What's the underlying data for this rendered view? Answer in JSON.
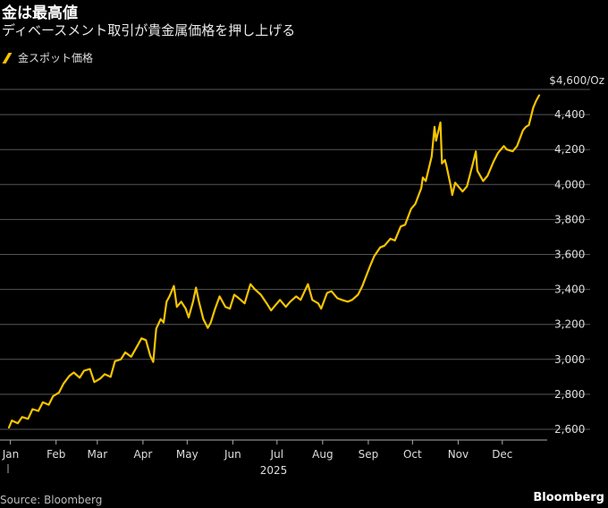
{
  "header": {
    "title": "金は最高値",
    "subtitle": "ディベースメント取引が貴金属価格を押し上げる"
  },
  "legend": {
    "label": "金スポット価格"
  },
  "footer": {
    "source": "Source: Bloomberg",
    "brand": "Bloomberg"
  },
  "colors": {
    "line": "#f5c400",
    "grid": "#555555",
    "background": "#000000"
  },
  "chart_data": {
    "type": "line",
    "title": "金は最高値",
    "subtitle": "ディベースメント取引が貴金属価格を押し上げる",
    "unit_label": "$4,600/Oz",
    "year_label": "2025",
    "ylim": [
      2500,
      4700
    ],
    "yticks": [
      {
        "value": 2600,
        "label": "2,600"
      },
      {
        "value": 2800,
        "label": "2,800"
      },
      {
        "value": 3000,
        "label": "3,000"
      },
      {
        "value": 3200,
        "label": "3,200"
      },
      {
        "value": 3400,
        "label": "3,400"
      },
      {
        "value": 3600,
        "label": "3,600"
      },
      {
        "value": 3800,
        "label": "3,800"
      },
      {
        "value": 4000,
        "label": "4,000"
      },
      {
        "value": 4200,
        "label": "4,200"
      },
      {
        "value": 4400,
        "label": "4,400"
      }
    ],
    "xticks": [
      {
        "date": "2025-01-01",
        "label": "Jan"
      },
      {
        "date": "2025-02-01",
        "label": "Feb"
      },
      {
        "date": "2025-03-01",
        "label": "Mar"
      },
      {
        "date": "2025-04-01",
        "label": "Apr"
      },
      {
        "date": "2025-05-01",
        "label": "May"
      },
      {
        "date": "2025-06-01",
        "label": "Jun"
      },
      {
        "date": "2025-07-01",
        "label": "Jul"
      },
      {
        "date": "2025-08-01",
        "label": "Aug"
      },
      {
        "date": "2025-09-01",
        "label": "Sep"
      },
      {
        "date": "2025-10-01",
        "label": "Oct"
      },
      {
        "date": "2025-11-01",
        "label": "Nov"
      },
      {
        "date": "2025-12-01",
        "label": "Dec"
      }
    ],
    "grid": "horizontal",
    "legend_position": "top-left",
    "series": [
      {
        "name": "金スポット価格",
        "points": [
          [
            "2024-12-31",
            2610
          ],
          [
            "2025-01-02",
            2650
          ],
          [
            "2025-01-06",
            2635
          ],
          [
            "2025-01-09",
            2670
          ],
          [
            "2025-01-13",
            2660
          ],
          [
            "2025-01-16",
            2715
          ],
          [
            "2025-01-20",
            2705
          ],
          [
            "2025-01-23",
            2755
          ],
          [
            "2025-01-27",
            2740
          ],
          [
            "2025-01-30",
            2790
          ],
          [
            "2025-02-03",
            2810
          ],
          [
            "2025-02-06",
            2860
          ],
          [
            "2025-02-10",
            2905
          ],
          [
            "2025-02-13",
            2925
          ],
          [
            "2025-02-17",
            2895
          ],
          [
            "2025-02-20",
            2935
          ],
          [
            "2025-02-24",
            2945
          ],
          [
            "2025-02-27",
            2870
          ],
          [
            "2025-03-03",
            2890
          ],
          [
            "2025-03-06",
            2915
          ],
          [
            "2025-03-10",
            2900
          ],
          [
            "2025-03-13",
            2990
          ],
          [
            "2025-03-17",
            3000
          ],
          [
            "2025-03-20",
            3040
          ],
          [
            "2025-03-24",
            3015
          ],
          [
            "2025-03-27",
            3060
          ],
          [
            "2025-03-31",
            3120
          ],
          [
            "2025-04-03",
            3110
          ],
          [
            "2025-04-06",
            3020
          ],
          [
            "2025-04-08",
            2985
          ],
          [
            "2025-04-10",
            3175
          ],
          [
            "2025-04-13",
            3230
          ],
          [
            "2025-04-15",
            3210
          ],
          [
            "2025-04-17",
            3330
          ],
          [
            "2025-04-19",
            3360
          ],
          [
            "2025-04-22",
            3420
          ],
          [
            "2025-04-24",
            3300
          ],
          [
            "2025-04-27",
            3330
          ],
          [
            "2025-04-30",
            3290
          ],
          [
            "2025-05-02",
            3240
          ],
          [
            "2025-05-05",
            3330
          ],
          [
            "2025-05-07",
            3410
          ],
          [
            "2025-05-09",
            3330
          ],
          [
            "2025-05-12",
            3230
          ],
          [
            "2025-05-15",
            3180
          ],
          [
            "2025-05-17",
            3210
          ],
          [
            "2025-05-20",
            3290
          ],
          [
            "2025-05-23",
            3360
          ],
          [
            "2025-05-27",
            3300
          ],
          [
            "2025-05-30",
            3290
          ],
          [
            "2025-06-02",
            3370
          ],
          [
            "2025-06-05",
            3350
          ],
          [
            "2025-06-09",
            3320
          ],
          [
            "2025-06-13",
            3430
          ],
          [
            "2025-06-16",
            3400
          ],
          [
            "2025-06-20",
            3370
          ],
          [
            "2025-06-24",
            3320
          ],
          [
            "2025-06-27",
            3280
          ],
          [
            "2025-06-30",
            3310
          ],
          [
            "2025-07-03",
            3340
          ],
          [
            "2025-07-07",
            3300
          ],
          [
            "2025-07-10",
            3330
          ],
          [
            "2025-07-14",
            3360
          ],
          [
            "2025-07-17",
            3340
          ],
          [
            "2025-07-22",
            3430
          ],
          [
            "2025-07-25",
            3340
          ],
          [
            "2025-07-29",
            3320
          ],
          [
            "2025-07-31",
            3290
          ],
          [
            "2025-08-04",
            3380
          ],
          [
            "2025-08-07",
            3390
          ],
          [
            "2025-08-11",
            3350
          ],
          [
            "2025-08-14",
            3340
          ],
          [
            "2025-08-18",
            3330
          ],
          [
            "2025-08-21",
            3340
          ],
          [
            "2025-08-25",
            3370
          ],
          [
            "2025-08-28",
            3420
          ],
          [
            "2025-09-02",
            3530
          ],
          [
            "2025-09-05",
            3590
          ],
          [
            "2025-09-09",
            3640
          ],
          [
            "2025-09-12",
            3650
          ],
          [
            "2025-09-16",
            3690
          ],
          [
            "2025-09-19",
            3680
          ],
          [
            "2025-09-23",
            3760
          ],
          [
            "2025-09-26",
            3770
          ],
          [
            "2025-09-30",
            3860
          ],
          [
            "2025-10-03",
            3890
          ],
          [
            "2025-10-07",
            3980
          ],
          [
            "2025-10-08",
            4040
          ],
          [
            "2025-10-10",
            4020
          ],
          [
            "2025-10-14",
            4160
          ],
          [
            "2025-10-16",
            4330
          ],
          [
            "2025-10-17",
            4250
          ],
          [
            "2025-10-20",
            4355
          ],
          [
            "2025-10-21",
            4120
          ],
          [
            "2025-10-23",
            4140
          ],
          [
            "2025-10-24",
            4110
          ],
          [
            "2025-10-27",
            3990
          ],
          [
            "2025-10-28",
            3940
          ],
          [
            "2025-10-30",
            4010
          ],
          [
            "2025-11-04",
            3960
          ],
          [
            "2025-11-07",
            3990
          ],
          [
            "2025-11-11",
            4120
          ],
          [
            "2025-11-13",
            4190
          ],
          [
            "2025-11-14",
            4080
          ],
          [
            "2025-11-18",
            4020
          ],
          [
            "2025-11-21",
            4050
          ],
          [
            "2025-11-25",
            4130
          ],
          [
            "2025-11-28",
            4180
          ],
          [
            "2025-12-02",
            4220
          ],
          [
            "2025-12-04",
            4200
          ],
          [
            "2025-12-08",
            4190
          ],
          [
            "2025-12-11",
            4220
          ],
          [
            "2025-12-15",
            4310
          ],
          [
            "2025-12-17",
            4330
          ],
          [
            "2025-12-19",
            4340
          ],
          [
            "2025-12-22",
            4440
          ],
          [
            "2025-12-24",
            4480
          ],
          [
            "2025-12-26",
            4510
          ]
        ]
      }
    ]
  }
}
